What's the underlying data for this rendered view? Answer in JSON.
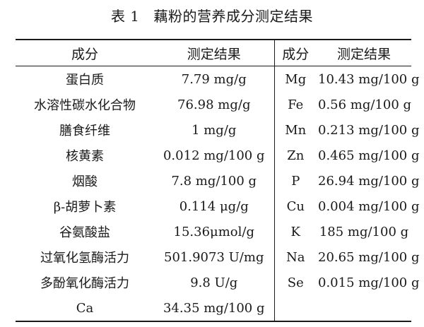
{
  "caption": {
    "number": "表 1",
    "title": "藕粉的营养成分测定结果"
  },
  "table": {
    "headers": [
      "成分",
      "测定结果",
      "成分",
      "测定结果"
    ],
    "rows": [
      [
        "蛋白质",
        "7.79 mg/g",
        "Mg",
        "10.43 mg/100 g"
      ],
      [
        "水溶性碳水化合物",
        "76.98 mg/g",
        "Fe",
        "0.56 mg/100 g"
      ],
      [
        "膳食纤维",
        "1 mg/g",
        "Mn",
        "0.213 mg/100 g"
      ],
      [
        "核黄素",
        "0.012 mg/100 g",
        "Zn",
        "0.465 mg/100 g"
      ],
      [
        "烟酸",
        "7.8 mg/100 g",
        "P",
        "26.94 mg/100 g"
      ],
      [
        "β-胡萝卜素",
        "0.114 μg/g",
        "Cu",
        "0.004 mg/100 g"
      ],
      [
        "谷氨酸盐",
        "15.36μmol/g",
        "K",
        "185 mg/100 g"
      ],
      [
        "过氧化氢酶活力",
        "501.9073 U/mg",
        "Na",
        "20.65 mg/100 g"
      ],
      [
        "多酚氧化酶活力",
        "9.8 U/g",
        "Se",
        "0.015 mg/100 g"
      ],
      [
        "Ca",
        "34.35 mg/100 g",
        "",
        ""
      ]
    ]
  }
}
